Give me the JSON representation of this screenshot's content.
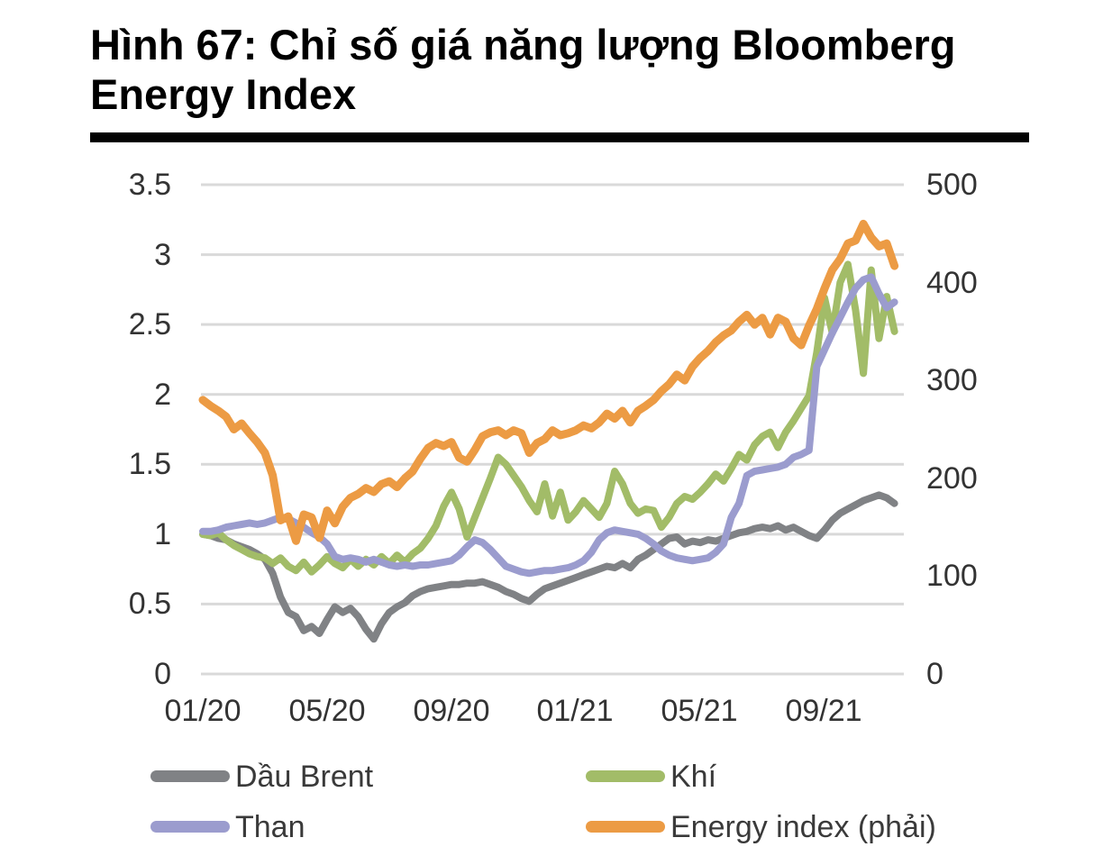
{
  "figure": {
    "title": "Hình 67: Chỉ số giá năng lượng Bloomberg Energy Index"
  },
  "chart_data": {
    "type": "line",
    "title": "Chỉ số giá năng lượng Bloomberg Energy Index",
    "grid": true,
    "legend_position": "bottom",
    "x_axis": {
      "tick_labels": [
        "01/20",
        "05/20",
        "09/20",
        "01/21",
        "05/21",
        "09/21"
      ],
      "start": "01/20",
      "step_months": 0.25,
      "note": "values sampled every 0.25 month from 01/20 to ~11/21"
    },
    "left_axis": {
      "range": [
        0,
        3.5
      ],
      "ticks": [
        0,
        0.5,
        1,
        1.5,
        2,
        2.5,
        3,
        3.5
      ],
      "tick_labels": [
        "3.5",
        "3",
        "2.5",
        "2",
        "1.5",
        "1",
        "0.5",
        "0"
      ]
    },
    "right_axis": {
      "range": [
        0,
        500
      ],
      "ticks": [
        0,
        100,
        200,
        300,
        400,
        500
      ],
      "tick_labels": [
        "500",
        "400",
        "300",
        "200",
        "100",
        "0"
      ]
    },
    "series": [
      {
        "name": "Dầu Brent",
        "axis": "left",
        "color": "#808285",
        "values": [
          1.0,
          0.99,
          0.97,
          0.96,
          0.93,
          0.91,
          0.89,
          0.86,
          0.82,
          0.72,
          0.55,
          0.44,
          0.41,
          0.31,
          0.34,
          0.29,
          0.39,
          0.48,
          0.44,
          0.47,
          0.41,
          0.32,
          0.25,
          0.36,
          0.44,
          0.48,
          0.51,
          0.56,
          0.59,
          0.61,
          0.62,
          0.63,
          0.64,
          0.64,
          0.65,
          0.65,
          0.66,
          0.64,
          0.62,
          0.59,
          0.57,
          0.54,
          0.52,
          0.57,
          0.61,
          0.63,
          0.65,
          0.67,
          0.69,
          0.71,
          0.73,
          0.75,
          0.77,
          0.76,
          0.79,
          0.76,
          0.82,
          0.85,
          0.89,
          0.93,
          0.97,
          0.98,
          0.93,
          0.95,
          0.94,
          0.96,
          0.95,
          0.97,
          0.99,
          1.01,
          1.02,
          1.04,
          1.05,
          1.04,
          1.06,
          1.03,
          1.05,
          1.02,
          0.99,
          0.97,
          1.03,
          1.1,
          1.15,
          1.18,
          1.21,
          1.24,
          1.26,
          1.28,
          1.26,
          1.22
        ]
      },
      {
        "name": "Khí",
        "axis": "left",
        "color": "#a2bc68",
        "values": [
          1.0,
          0.99,
          1.01,
          0.96,
          0.92,
          0.89,
          0.86,
          0.84,
          0.83,
          0.79,
          0.83,
          0.77,
          0.74,
          0.8,
          0.73,
          0.78,
          0.84,
          0.79,
          0.76,
          0.82,
          0.77,
          0.82,
          0.78,
          0.84,
          0.79,
          0.85,
          0.8,
          0.86,
          0.9,
          0.97,
          1.06,
          1.2,
          1.3,
          1.18,
          0.98,
          1.12,
          1.26,
          1.4,
          1.55,
          1.5,
          1.42,
          1.34,
          1.24,
          1.16,
          1.36,
          1.13,
          1.3,
          1.1,
          1.16,
          1.24,
          1.18,
          1.12,
          1.22,
          1.45,
          1.36,
          1.22,
          1.15,
          1.18,
          1.17,
          1.05,
          1.12,
          1.22,
          1.27,
          1.25,
          1.3,
          1.36,
          1.43,
          1.38,
          1.47,
          1.57,
          1.53,
          1.64,
          1.7,
          1.73,
          1.62,
          1.73,
          1.81,
          1.9,
          1.99,
          2.3,
          2.69,
          2.44,
          2.8,
          2.93,
          2.6,
          2.15,
          2.89,
          2.4,
          2.7,
          2.45
        ]
      },
      {
        "name": "Than",
        "axis": "left",
        "color": "#9b9cce",
        "values": [
          1.02,
          1.02,
          1.03,
          1.05,
          1.06,
          1.07,
          1.08,
          1.07,
          1.08,
          1.1,
          1.12,
          1.11,
          1.08,
          1.05,
          1.01,
          0.98,
          0.93,
          0.84,
          0.82,
          0.83,
          0.82,
          0.8,
          0.82,
          0.8,
          0.78,
          0.77,
          0.78,
          0.77,
          0.78,
          0.78,
          0.79,
          0.8,
          0.81,
          0.85,
          0.91,
          0.96,
          0.94,
          0.89,
          0.83,
          0.77,
          0.75,
          0.73,
          0.72,
          0.73,
          0.74,
          0.74,
          0.75,
          0.76,
          0.78,
          0.81,
          0.87,
          0.96,
          1.01,
          1.03,
          1.02,
          1.01,
          1.0,
          0.97,
          0.93,
          0.88,
          0.85,
          0.83,
          0.82,
          0.81,
          0.82,
          0.83,
          0.87,
          0.93,
          1.12,
          1.22,
          1.42,
          1.45,
          1.46,
          1.47,
          1.48,
          1.5,
          1.55,
          1.57,
          1.6,
          2.2,
          2.32,
          2.44,
          2.55,
          2.66,
          2.76,
          2.82,
          2.84,
          2.72,
          2.62,
          2.66
        ]
      },
      {
        "name": "Energy index (phải)",
        "axis": "right",
        "color": "#ec9b44",
        "values": [
          280,
          274,
          269,
          263,
          250,
          256,
          246,
          237,
          226,
          203,
          157,
          161,
          136,
          163,
          160,
          139,
          167,
          154,
          171,
          180,
          184,
          190,
          186,
          194,
          197,
          191,
          200,
          207,
          220,
          231,
          236,
          233,
          237,
          221,
          217,
          229,
          243,
          247,
          249,
          244,
          249,
          246,
          226,
          236,
          240,
          249,
          244,
          246,
          249,
          254,
          251,
          257,
          266,
          261,
          269,
          257,
          269,
          274,
          280,
          289,
          296,
          306,
          300,
          314,
          323,
          330,
          339,
          346,
          351,
          360,
          367,
          357,
          364,
          347,
          364,
          360,
          343,
          336,
          356,
          373,
          394,
          413,
          424,
          440,
          443,
          460,
          446,
          437,
          440,
          417
        ]
      }
    ]
  }
}
